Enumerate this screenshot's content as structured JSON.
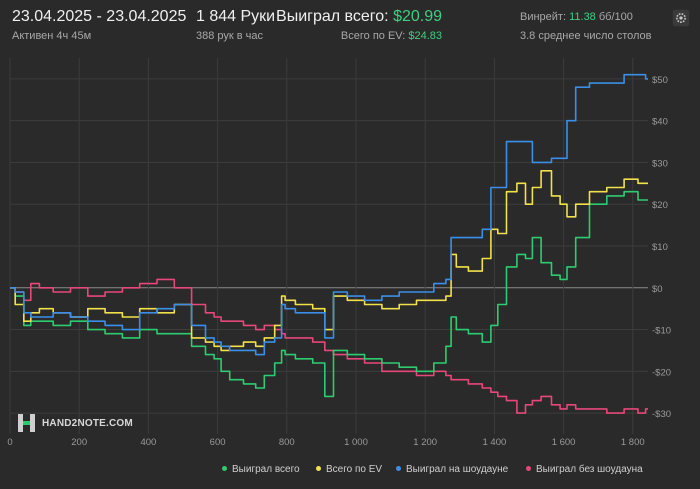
{
  "header": {
    "date_range": "23.04.2025 - 23.04.2025",
    "active": "Активен 4ч 45м",
    "hands": "1 844 Руки",
    "hands_per_hour": "388 рук в час",
    "won_label": "Выиграл всего:",
    "won_value": "$20.99",
    "ev_label": "Всего по EV:",
    "ev_value": "$24.83",
    "winrate_label": "Винрейт:",
    "winrate_value": "11.38",
    "winrate_unit": "бб/100",
    "tables": "3.8 среднее число столов",
    "settings_icon": "gear-icon"
  },
  "logo": {
    "text": "HAND2NOTE.COM",
    "icon": "h2n-logo-icon"
  },
  "colors": {
    "background": "#2a2a2a",
    "grid": "#3c3c3c",
    "zero_line": "#8a8a8a",
    "won": "#2ecc71",
    "ev": "#f1e14b",
    "showdown": "#3b8fe8",
    "non_showdown": "#e8477a",
    "accent_green": "#3fcf7f"
  },
  "chart_data": {
    "type": "line",
    "title": "",
    "xlabel": "",
    "ylabel": "",
    "xlim": [
      0,
      1844
    ],
    "ylim": [
      -35,
      55
    ],
    "x_ticks": [
      0,
      200,
      400,
      600,
      800,
      1000,
      1200,
      1400,
      1600,
      1800
    ],
    "x_tick_labels": [
      "0",
      "200",
      "400",
      "600",
      "800",
      "1 000",
      "1 200",
      "1 400",
      "1 600",
      "1 800"
    ],
    "y_ticks": [
      -30,
      -20,
      -10,
      0,
      10,
      20,
      30,
      40,
      50
    ],
    "y_tick_labels": [
      "-$30",
      "-$20",
      "-$10",
      "$0",
      "$10",
      "$20",
      "$30",
      "$40",
      "$50"
    ],
    "grid": true,
    "legend_position": "bottom-right",
    "series": [
      {
        "name": "Выиграл всего",
        "color": "#2ecc71",
        "x": [
          0,
          30,
          50,
          70,
          100,
          150,
          200,
          250,
          300,
          350,
          400,
          450,
          500,
          550,
          580,
          600,
          620,
          650,
          700,
          720,
          750,
          780,
          790,
          800,
          850,
          900,
          920,
          950,
          1000,
          1050,
          1100,
          1150,
          1200,
          1250,
          1270,
          1280,
          1300,
          1350,
          1380,
          1400,
          1420,
          1450,
          1480,
          1500,
          1520,
          1550,
          1580,
          1600,
          1620,
          1650,
          1700,
          1750,
          1800,
          1830,
          1844
        ],
        "y": [
          0,
          -2,
          -9,
          -8,
          -8,
          -9,
          -8,
          -10,
          -11,
          -12,
          -10,
          -11,
          -11,
          -14,
          -16,
          -17,
          -20,
          -22,
          -23,
          -24,
          -21,
          -18,
          -15,
          -16,
          -17,
          -18,
          -26,
          -15,
          -16,
          -17,
          -18,
          -19,
          -20,
          -18,
          -14,
          -7,
          -10,
          -11,
          -13,
          -9,
          -4,
          5,
          8,
          7,
          12,
          6,
          3,
          2,
          5,
          12,
          20,
          22,
          23,
          21,
          21
        ]
      },
      {
        "name": "Всего по EV",
        "color": "#f1e14b",
        "x": [
          0,
          30,
          50,
          70,
          100,
          150,
          200,
          250,
          300,
          350,
          400,
          450,
          500,
          550,
          580,
          600,
          620,
          650,
          700,
          720,
          750,
          780,
          790,
          800,
          850,
          900,
          920,
          950,
          1000,
          1050,
          1100,
          1150,
          1200,
          1250,
          1270,
          1280,
          1300,
          1350,
          1380,
          1400,
          1420,
          1450,
          1480,
          1500,
          1520,
          1550,
          1580,
          1600,
          1620,
          1650,
          1700,
          1750,
          1800,
          1830,
          1844
        ],
        "y": [
          0,
          -4,
          -8,
          -6,
          -5,
          -6,
          -7,
          -5,
          -6,
          -7,
          -5,
          -6,
          -4,
          -12,
          -13,
          -14,
          -15,
          -14,
          -13,
          -14,
          -12,
          -9,
          -2,
          -3,
          -4,
          -5,
          -10,
          -2,
          -3,
          -4,
          -5,
          -4,
          -3,
          -3,
          -2,
          8,
          5,
          4,
          7,
          14,
          13,
          23,
          25,
          20,
          24,
          28,
          22,
          20,
          17,
          20,
          23,
          24,
          26,
          25,
          25
        ]
      },
      {
        "name": "Выиграл на шоудауне",
        "color": "#3b8fe8",
        "x": [
          0,
          30,
          50,
          70,
          100,
          150,
          200,
          250,
          300,
          350,
          400,
          450,
          500,
          550,
          580,
          600,
          620,
          650,
          700,
          720,
          750,
          780,
          790,
          800,
          850,
          900,
          920,
          950,
          1000,
          1050,
          1100,
          1150,
          1200,
          1250,
          1270,
          1280,
          1300,
          1350,
          1380,
          1400,
          1420,
          1450,
          1480,
          1500,
          1520,
          1550,
          1580,
          1600,
          1620,
          1650,
          1700,
          1750,
          1800,
          1830,
          1844
        ],
        "y": [
          0,
          -1,
          -6,
          -7,
          -7,
          -6,
          -7,
          -8,
          -9,
          -10,
          -6,
          -5,
          -4,
          -9,
          -12,
          -13,
          -14,
          -15,
          -15,
          -16,
          -13,
          -12,
          -4,
          -5,
          -6,
          -6,
          -12,
          -1,
          -2,
          -3,
          -2,
          -1,
          -1,
          1,
          2,
          12,
          12,
          12,
          14,
          24,
          24,
          35,
          35,
          35,
          30,
          30,
          31,
          31,
          40,
          48,
          49,
          49,
          51,
          51,
          50
        ]
      },
      {
        "name": "Выиграл без шоудауна",
        "color": "#e8477a",
        "x": [
          0,
          30,
          50,
          70,
          100,
          150,
          200,
          250,
          300,
          350,
          400,
          450,
          500,
          550,
          580,
          600,
          620,
          650,
          700,
          720,
          750,
          780,
          790,
          800,
          850,
          900,
          920,
          950,
          1000,
          1050,
          1100,
          1150,
          1200,
          1250,
          1270,
          1280,
          1300,
          1350,
          1380,
          1400,
          1420,
          1450,
          1480,
          1500,
          1520,
          1550,
          1580,
          1600,
          1620,
          1650,
          1700,
          1750,
          1800,
          1830,
          1844
        ],
        "y": [
          0,
          -1,
          -3,
          1,
          0,
          -1,
          0,
          -2,
          -1,
          0,
          1,
          2,
          0,
          -4,
          -6,
          -7,
          -8,
          -8,
          -9,
          -10,
          -9,
          -10,
          -11,
          -12,
          -12,
          -13,
          -15,
          -16,
          -17,
          -18,
          -20,
          -20,
          -21,
          -20,
          -21,
          -22,
          -22,
          -23,
          -24,
          -25,
          -26,
          -27,
          -30,
          -28,
          -27,
          -26,
          -28,
          -29,
          -28,
          -29,
          -29,
          -30,
          -29,
          -30,
          -29
        ]
      }
    ]
  }
}
